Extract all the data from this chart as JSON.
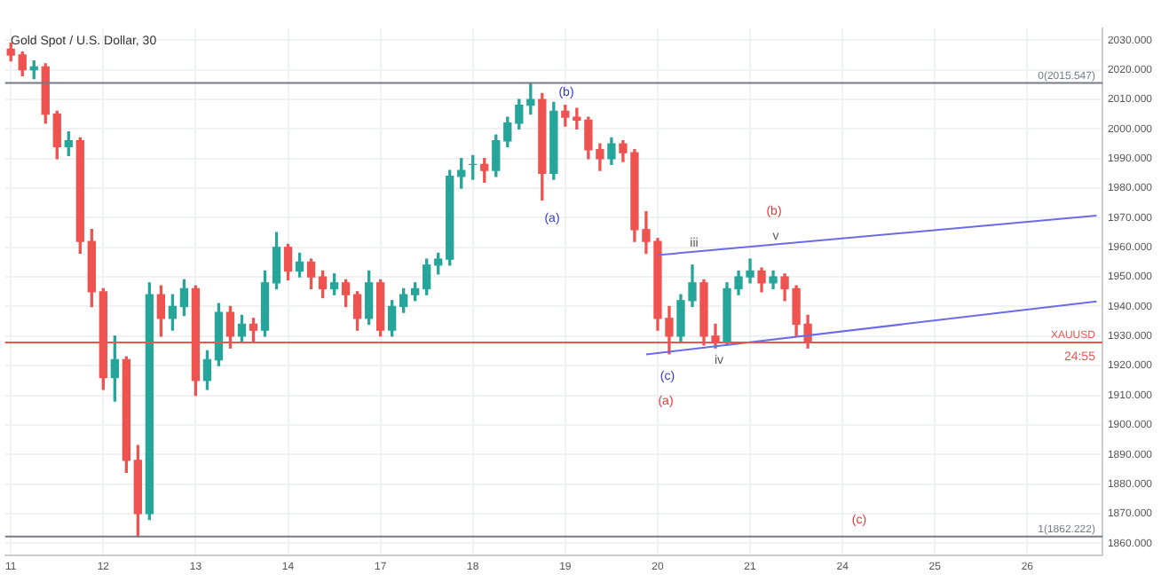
{
  "chart_data": {
    "type": "candlestick",
    "title": "Gold Spot / U.S. Dollar, 30",
    "categories": [
      "11",
      null,
      null,
      null,
      null,
      null,
      null,
      null,
      "12",
      null,
      null,
      null,
      null,
      null,
      null,
      null,
      "13",
      null,
      null,
      null,
      null,
      null,
      null,
      null,
      "14",
      null,
      null,
      null,
      null,
      null,
      null,
      null,
      "17",
      null,
      null,
      null,
      null,
      null,
      null,
      null,
      "18",
      null,
      null,
      null,
      null,
      null,
      null,
      null,
      "19",
      null,
      null,
      null,
      null,
      null,
      null,
      null,
      "20",
      null,
      null,
      null,
      null,
      null,
      null,
      null,
      "21",
      null,
      null,
      null,
      null,
      null,
      null,
      null,
      "24",
      null,
      null,
      null,
      null,
      null,
      null,
      null,
      "25",
      null,
      null,
      null,
      null,
      null,
      null,
      null,
      "26",
      null,
      null,
      null,
      null,
      null,
      null
    ],
    "ohlc": [
      [
        2027,
        2029,
        2023,
        2025
      ],
      [
        2025,
        2026,
        2018,
        2020
      ],
      [
        2020,
        2023,
        2017,
        2021
      ],
      [
        2021,
        2022,
        2002,
        2005
      ],
      [
        2005,
        2006,
        1990,
        1994
      ],
      [
        1994,
        1999,
        1991,
        1996
      ],
      [
        1996,
        1997,
        1958,
        1962
      ],
      [
        1962,
        1966,
        1940,
        1945
      ],
      [
        1945,
        1946,
        1912,
        1916
      ],
      [
        1916,
        1930,
        1908,
        1922
      ],
      [
        1922,
        1923,
        1884,
        1888
      ],
      [
        1888,
        1893,
        1862.222,
        1870
      ],
      [
        1870,
        1948,
        1868,
        1944
      ],
      [
        1944,
        1947,
        1930,
        1936
      ],
      [
        1936,
        1944,
        1932,
        1940
      ],
      [
        1940,
        1949,
        1937,
        1946
      ],
      [
        1946,
        1947,
        1910,
        1915
      ],
      [
        1915,
        1925,
        1912,
        1922
      ],
      [
        1922,
        1941,
        1920,
        1938
      ],
      [
        1938,
        1940,
        1926,
        1930
      ],
      [
        1930,
        1937,
        1928,
        1934
      ],
      [
        1934,
        1936,
        1928,
        1932
      ],
      [
        1932,
        1952,
        1930,
        1948
      ],
      [
        1948,
        1965,
        1946,
        1960
      ],
      [
        1960,
        1961,
        1949,
        1952
      ],
      [
        1952,
        1958,
        1950,
        1955
      ],
      [
        1955,
        1956,
        1946,
        1950
      ],
      [
        1950,
        1952,
        1943,
        1946
      ],
      [
        1946,
        1951,
        1944,
        1948
      ],
      [
        1948,
        1949,
        1940,
        1944
      ],
      [
        1944,
        1945,
        1932,
        1936
      ],
      [
        1936,
        1952,
        1934,
        1948
      ],
      [
        1948,
        1949,
        1930,
        1932
      ],
      [
        1932,
        1942,
        1930,
        1940
      ],
      [
        1940,
        1946,
        1938,
        1944
      ],
      [
        1944,
        1948,
        1942,
        1946
      ],
      [
        1946,
        1956,
        1944,
        1954
      ],
      [
        1954,
        1958,
        1951,
        1956
      ],
      [
        1956,
        1986,
        1954,
        1984
      ],
      [
        1984,
        1990,
        1980,
        1986
      ],
      [
        1988,
        1991,
        1983,
        1988
      ],
      [
        1988,
        1990,
        1982,
        1986
      ],
      [
        1986,
        1998,
        1984,
        1996
      ],
      [
        1996,
        2004,
        1994,
        2002
      ],
      [
        2002,
        2010,
        2000,
        2008
      ],
      [
        2008,
        2015.547,
        2005,
        2010
      ],
      [
        2010,
        2012,
        1976,
        1985
      ],
      [
        1985,
        2009,
        1983,
        2006
      ],
      [
        2006,
        2008,
        2001,
        2004
      ],
      [
        2004,
        2007,
        2000,
        2003
      ],
      [
        2003,
        2004,
        1990,
        1993
      ],
      [
        1993,
        1995,
        1986,
        1990
      ],
      [
        1990,
        1997,
        1988,
        1995
      ],
      [
        1995,
        1996,
        1989,
        1992
      ],
      [
        1992,
        1993,
        1962,
        1966
      ],
      [
        1966,
        1972,
        1958,
        1962
      ],
      [
        1962,
        1963,
        1932,
        1936
      ],
      [
        1936,
        1940,
        1924,
        1930
      ],
      [
        1930,
        1944,
        1928,
        1942
      ],
      [
        1942,
        1954,
        1940,
        1948
      ],
      [
        1948,
        1949,
        1927,
        1930
      ],
      [
        1930,
        1934,
        1926,
        1928
      ],
      [
        1928,
        1948,
        1927,
        1946
      ],
      [
        1946,
        1952,
        1944,
        1950
      ],
      [
        1950,
        1956,
        1948,
        1952
      ],
      [
        1952,
        1953,
        1945,
        1948
      ],
      [
        1948,
        1952,
        1946,
        1950
      ],
      [
        1950,
        1951,
        1942,
        1946
      ],
      [
        1946,
        1947,
        1930,
        1934
      ],
      [
        1934,
        1937,
        1926,
        1927.879
      ],
      null,
      null,
      null,
      null,
      null,
      null,
      null,
      null,
      null,
      null,
      null,
      null,
      null,
      null,
      null,
      null,
      null,
      null,
      null,
      null,
      null,
      null,
      null,
      null,
      null
    ],
    "series": [
      {
        "type": "line",
        "color": "#6b6be6",
        "values": [
          null,
          null,
          null,
          null,
          null,
          null,
          null,
          null,
          null,
          null,
          null,
          null,
          null,
          null,
          null,
          null,
          null,
          null,
          null,
          null,
          null,
          null,
          null,
          null,
          null,
          null,
          null,
          null,
          null,
          null,
          null,
          null,
          null,
          null,
          null,
          null,
          null,
          null,
          null,
          null,
          null,
          null,
          null,
          null,
          null,
          null,
          null,
          null,
          null,
          null,
          null,
          null,
          null,
          null,
          null,
          null,
          1957.4,
          null,
          null,
          null,
          null,
          null,
          null,
          null,
          null,
          null,
          null,
          null,
          null,
          null,
          null,
          null,
          null,
          null,
          null,
          null,
          null,
          null,
          null,
          null,
          null,
          null,
          null,
          null,
          null,
          null,
          null,
          null,
          null,
          null,
          null,
          null,
          null,
          null,
          1970.7
        ]
      },
      {
        "type": "line",
        "color": "#6b6be6",
        "values": [
          null,
          null,
          null,
          null,
          null,
          null,
          null,
          null,
          null,
          null,
          null,
          null,
          null,
          null,
          null,
          null,
          null,
          null,
          null,
          null,
          null,
          null,
          null,
          null,
          null,
          null,
          null,
          null,
          null,
          null,
          null,
          null,
          null,
          null,
          null,
          null,
          null,
          null,
          null,
          null,
          null,
          null,
          null,
          null,
          null,
          null,
          null,
          null,
          null,
          null,
          null,
          null,
          null,
          null,
          null,
          1923.8,
          null,
          null,
          null,
          null,
          null,
          null,
          null,
          null,
          null,
          null,
          null,
          null,
          null,
          null,
          null,
          null,
          null,
          null,
          null,
          null,
          null,
          null,
          null,
          null,
          null,
          null,
          null,
          null,
          null,
          null,
          null,
          null,
          null,
          null,
          null,
          null,
          null,
          null,
          1941.7
        ]
      }
    ],
    "ylim": [
      1856,
      2034
    ],
    "yticks": [
      {
        "value": 1860,
        "label": "1860.000"
      },
      {
        "value": 1870,
        "label": "1870.000"
      },
      {
        "value": 1880,
        "label": "1880.000"
      },
      {
        "value": 1890,
        "label": "1890.000"
      },
      {
        "value": 1900,
        "label": "1900.000"
      },
      {
        "value": 1910,
        "label": "1910.000"
      },
      {
        "value": 1920,
        "label": "1920.000"
      },
      {
        "value": 1930,
        "label": "1930.000"
      },
      {
        "value": 1940,
        "label": "1940.000"
      },
      {
        "value": 1950,
        "label": "1950.000"
      },
      {
        "value": 1960,
        "label": "1960.000"
      },
      {
        "value": 1970,
        "label": "1970.000"
      },
      {
        "value": 1980,
        "label": "1980.000"
      },
      {
        "value": 1990,
        "label": "1990.000"
      },
      {
        "value": 2000,
        "label": "2000.000"
      },
      {
        "value": 2010,
        "label": "2010.000"
      },
      {
        "value": 2020,
        "label": "2020.000"
      },
      {
        "value": 2030,
        "label": "2030.000"
      }
    ],
    "ref_lines": [
      {
        "axis": "y",
        "value": 2015.547,
        "label": "0(2015.547)",
        "color": "#787b86"
      },
      {
        "axis": "y",
        "value": 1862.222,
        "label": "1(1862.222)",
        "color": "#787b86"
      },
      {
        "axis": "y",
        "value": 1927.879,
        "label": "XAUUSD",
        "color": "#ef5350"
      }
    ],
    "annotations": [
      "(b)",
      "(a)",
      "(c)",
      "(a)",
      "(b)",
      "iii",
      "iv",
      "v",
      "(c)",
      "24:55"
    ],
    "grid": true,
    "legend": false
  }
}
